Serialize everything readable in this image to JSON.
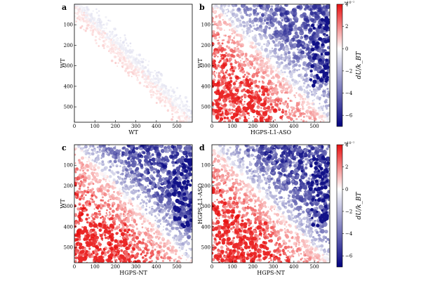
{
  "figure": {
    "panels": [
      {
        "letter": "a",
        "xlabel": "WT",
        "ylabel": "WT"
      },
      {
        "letter": "b",
        "xlabel": "HGPS-L1-ASO",
        "ylabel": "WT"
      },
      {
        "letter": "c",
        "xlabel": "HGPS-NT",
        "ylabel": "WT"
      },
      {
        "letter": "d",
        "xlabel": "HGPS-NT",
        "ylabel": "HGPS-L1-ASO"
      }
    ],
    "colorbars": [
      {
        "label": "dU/k_BT",
        "exponent": "×10⁻²",
        "ticks": [
          "4",
          "2",
          "0",
          "−2",
          "−4",
          "−6"
        ]
      },
      {
        "label": "dU/k_BT",
        "exponent": "×10⁻²",
        "ticks": [
          "4",
          "2",
          "0",
          "−2",
          "−4",
          "−6"
        ]
      }
    ]
  },
  "chart_data": [
    {
      "panel": "a",
      "type": "scatter",
      "xlabel": "WT",
      "ylabel": "WT",
      "xlim": [
        0,
        575
      ],
      "ylim": [
        575,
        0
      ],
      "xticks": [
        0,
        100,
        200,
        300,
        400,
        500
      ],
      "yticks": [
        100,
        200,
        300,
        400,
        500
      ],
      "color_scale": {
        "min": -7,
        "max": 4,
        "unit_exponent": -2,
        "neg_color": "#00007f",
        "zero_color": "#ffffff",
        "pos_color": "#e81010"
      },
      "description_values": {
        "upper_triangle_mean": -1.5,
        "lower_triangle_mean": 1.5
      }
    },
    {
      "panel": "b",
      "type": "scatter",
      "xlabel": "HGPS-L1-ASO",
      "ylabel": "WT",
      "xlim": [
        0,
        575
      ],
      "ylim": [
        575,
        0
      ],
      "xticks": [
        0,
        100,
        200,
        300,
        400,
        500
      ],
      "yticks": [
        100,
        200,
        300,
        400,
        500
      ],
      "color_scale": {
        "min": -7,
        "max": 4,
        "unit_exponent": -2
      },
      "description_values": {
        "upper_triangle_mean": -4,
        "lower_triangle_mean": 3
      }
    },
    {
      "panel": "c",
      "type": "scatter",
      "xlabel": "HGPS-NT",
      "ylabel": "WT",
      "xlim": [
        0,
        575
      ],
      "ylim": [
        575,
        0
      ],
      "xticks": [
        0,
        100,
        200,
        300,
        400,
        500
      ],
      "yticks": [
        100,
        200,
        300,
        400,
        500
      ],
      "color_scale": {
        "min": -7,
        "max": 4,
        "unit_exponent": -2
      },
      "description_values": {
        "upper_triangle_mean": -4.5,
        "lower_triangle_mean": 3
      }
    },
    {
      "panel": "d",
      "type": "scatter",
      "xlabel": "HGPS-NT",
      "ylabel": "HGPS-L1-ASO",
      "xlim": [
        0,
        575
      ],
      "ylim": [
        575,
        0
      ],
      "xticks": [
        0,
        100,
        200,
        300,
        400,
        500
      ],
      "yticks": [
        100,
        200,
        300,
        400,
        500
      ],
      "color_scale": {
        "min": -7,
        "max": 4,
        "unit_exponent": -2
      },
      "description_values": {
        "upper_triangle_mean": -4.5,
        "lower_triangle_mean": 3
      }
    }
  ]
}
